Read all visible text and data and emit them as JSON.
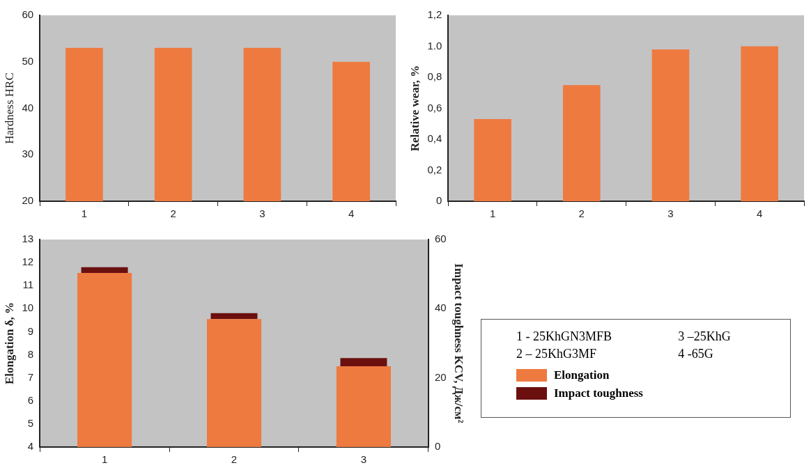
{
  "chart_data": [
    {
      "type": "bar",
      "categories": [
        "1",
        "2",
        "3",
        "4"
      ],
      "values": [
        53,
        53,
        53,
        50
      ],
      "color": "#ee7a40",
      "ylabel": "Hardness HRC",
      "ylim": [
        20,
        60
      ],
      "yticks": [
        20,
        30,
        40,
        50,
        60
      ],
      "grid": false,
      "legend": false
    },
    {
      "type": "bar",
      "categories": [
        "1",
        "2",
        "3",
        "4"
      ],
      "values": [
        0.53,
        0.75,
        0.98,
        1.0
      ],
      "color": "#ee7a40",
      "ylabel": "Relative wear, %",
      "ylim": [
        0,
        1.2
      ],
      "yticks": [
        {
          "value": 0,
          "label": "0"
        },
        {
          "value": 0.2,
          "label": "0,2"
        },
        {
          "value": 0.4,
          "label": "0,4"
        },
        {
          "value": 0.6,
          "label": "0,6"
        },
        {
          "value": 0.8,
          "label": "0,8"
        },
        {
          "value": 1.0,
          "label": "1.0"
        },
        {
          "value": 1.2,
          "label": "1,2"
        }
      ],
      "grid": false,
      "legend": false
    },
    {
      "type": "bar",
      "categories": [
        "1",
        "2",
        "3"
      ],
      "series": [
        {
          "name": "Elongation",
          "color": "#ee7a40",
          "values": [
            11.55,
            9.55,
            7.5
          ]
        },
        {
          "name": "Impact toughness",
          "color": "#6b0f0f",
          "axis": "y2",
          "base": [
            50.3,
            37,
            23.3
          ],
          "values": [
            1.7,
            1.7,
            2.4
          ]
        }
      ],
      "ylabel": "Elongation δ, %",
      "y2label": "Impact toughness KCV, Дж/см²",
      "ylim": [
        4,
        13
      ],
      "yticks": [
        4,
        5,
        6,
        7,
        8,
        9,
        10,
        11,
        12,
        13
      ],
      "y2lim": [
        0,
        60
      ],
      "y2ticks": [
        0,
        20,
        40,
        60
      ],
      "grid": false,
      "legend": "right",
      "annotations": [
        "1 - 25KhGN3MFB",
        "3 –25KhG",
        "2 – 25KhG3MF",
        "4 -65G"
      ]
    }
  ]
}
